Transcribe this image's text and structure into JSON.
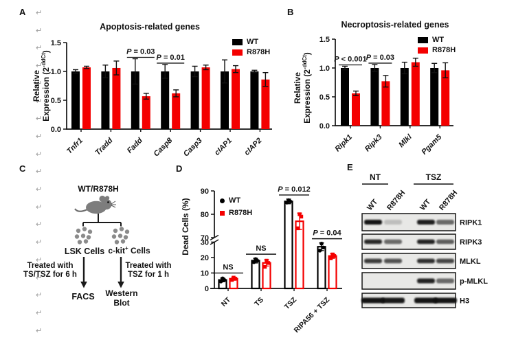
{
  "figure": {
    "background": "#ffffff",
    "labels": {
      "a": "A",
      "b": "B",
      "c": "C",
      "d": "D",
      "e": "E"
    }
  },
  "margin_marks": {
    "symbol": "↵",
    "color": "#9a9a9a",
    "x": 52,
    "y_start": 14,
    "spacing": 25.7,
    "count": 19
  },
  "colors": {
    "wt": "#000000",
    "r878h": "#f40000",
    "diagram_gray": "#7d7d7d"
  },
  "chart_data": [
    {
      "id": "apoptosis",
      "panel": "A",
      "type": "grouped-bar",
      "title": "Apoptosis-related genes",
      "ylabel": {
        "line1": "Relative",
        "line2_pre": "Expression (2",
        "sup": "-ddCt",
        "post": ")"
      },
      "ylim": [
        0,
        1.5
      ],
      "yticks": [
        0.0,
        0.5,
        1.0,
        1.5
      ],
      "categories": [
        "Tnfr1",
        "Tradd",
        "Fadd",
        "Casp8",
        "Casp3",
        "cIAP1",
        "cIAP2"
      ],
      "categories_italic": true,
      "legend_position": "top-right",
      "series": [
        {
          "name": "WT",
          "color": "#000000",
          "values": [
            1.0,
            1.0,
            1.0,
            1.0,
            1.0,
            1.0,
            1.0
          ],
          "errors": [
            0.03,
            0.11,
            0.22,
            0.12,
            0.09,
            0.2,
            0.02
          ]
        },
        {
          "name": "R878H",
          "color": "#f40000",
          "values": [
            1.07,
            1.06,
            0.57,
            0.62,
            1.07,
            1.04,
            0.86
          ],
          "errors": [
            0.02,
            0.12,
            0.05,
            0.06,
            0.04,
            0.06,
            0.12
          ]
        }
      ],
      "annotations": [
        {
          "text": "P = 0.03",
          "category_index": 2
        },
        {
          "text": "P = 0.01",
          "category_index": 3
        }
      ]
    },
    {
      "id": "necroptosis",
      "panel": "B",
      "type": "grouped-bar",
      "title": "Necroptosis-related genes",
      "ylabel": {
        "line1": "Relative",
        "line2_pre": "Expression (2",
        "sup": "-ddCt",
        "post": ")"
      },
      "ylim": [
        0,
        1.5
      ],
      "yticks": [
        0.0,
        0.5,
        1.0,
        1.5
      ],
      "categories": [
        "Ripk1",
        "Ripk3",
        "Mlkl",
        "Pgam5"
      ],
      "categories_italic": true,
      "legend_position": "top-right",
      "series": [
        {
          "name": "WT",
          "color": "#000000",
          "values": [
            1.0,
            1.0,
            1.0,
            1.0
          ],
          "errors": [
            0.03,
            0.06,
            0.1,
            0.08
          ]
        },
        {
          "name": "R878H",
          "color": "#f40000",
          "values": [
            0.56,
            0.77,
            1.1,
            0.96
          ],
          "errors": [
            0.04,
            0.1,
            0.07,
            0.13
          ]
        }
      ],
      "annotations": [
        {
          "text": "P < 0.001",
          "category_index": 0
        },
        {
          "text": "P = 0.03",
          "category_index": 1
        }
      ]
    },
    {
      "id": "dead_cells",
      "panel": "D",
      "type": "grouped-bar-scatter",
      "ylabel": "Dead Cells (%)",
      "broken_axis": {
        "ylim_lower": [
          0,
          30
        ],
        "ylim_upper": [
          70,
          90
        ],
        "yticks_lower": [
          0,
          10,
          20,
          30
        ],
        "yticks_upper": [
          70,
          80,
          90
        ]
      },
      "categories": [
        "NT",
        "TS",
        "TSZ",
        "RIPA56 + TSZ"
      ],
      "categories_italic": false,
      "legend_position": "top-left",
      "series": [
        {
          "name": "WT",
          "color": "#000000",
          "marker": "circle",
          "values": [
            5.5,
            18,
            85.5,
            27
          ],
          "errors": [
            1.2,
            1.5,
            1.0,
            2.5
          ],
          "points": [
            [
              4.5,
              5.5,
              6.5
            ],
            [
              17,
              18,
              19
            ],
            [
              85,
              85.5,
              86
            ],
            [
              24.5,
              26.5,
              29
            ]
          ]
        },
        {
          "name": "R878H",
          "color": "#f40000",
          "marker": "square",
          "values": [
            6.3,
            16.5,
            77,
            21
          ],
          "errors": [
            1.0,
            2.0,
            3.5,
            1.5
          ],
          "points": [
            [
              5.5,
              6.3,
              7
            ],
            [
              14,
              16.5,
              18
            ],
            [
              74,
              79,
              80
            ],
            [
              19.5,
              21,
              22
            ]
          ]
        }
      ],
      "annotations": [
        {
          "text": "NS",
          "category_index": 0
        },
        {
          "text": "NS",
          "category_index": 1
        },
        {
          "text": "P = 0.012",
          "category_index": 2
        },
        {
          "text": "P = 0.04",
          "category_index": 3
        }
      ]
    }
  ],
  "panelC": {
    "top_label": "WT/R878H",
    "left_cells_label": "LSK Cells",
    "right_cells": {
      "pre": "c-kit",
      "sup": "+",
      "post": " Cells"
    },
    "left_treatment_line1": "Treated with",
    "left_treatment_line2": "TS/TSZ for 6 h",
    "right_treatment_line1": "Treated with",
    "right_treatment_line2": "TSZ for 1 h",
    "left_output": "FACS",
    "right_output_line1": "Western",
    "right_output_line2": "Blot"
  },
  "panelE": {
    "groups": [
      "NT",
      "TSZ"
    ],
    "lanes": [
      "WT",
      "R878H",
      "WT",
      "R878H"
    ],
    "rows": [
      {
        "label": "RIPK1",
        "bands": [
          0.97,
          0.18,
          0.92,
          0.55
        ],
        "band_width": 26,
        "band_height": 7
      },
      {
        "label": "RIPK3",
        "bands": [
          0.88,
          0.55,
          0.9,
          0.6
        ],
        "band_width": 26,
        "band_height": 6.5
      },
      {
        "label": "MLKL",
        "bands": [
          0.8,
          0.7,
          0.85,
          0.75
        ],
        "band_width": 26,
        "band_height": 6.5
      },
      {
        "label": "p-MLKL",
        "bands": [
          0,
          0,
          0.9,
          0.55
        ],
        "band_width": 26,
        "band_height": 7
      },
      {
        "label": "H3",
        "bands": [
          0.97,
          0.95,
          0.97,
          0.97
        ],
        "band_width": 34,
        "band_height": 8
      }
    ]
  }
}
